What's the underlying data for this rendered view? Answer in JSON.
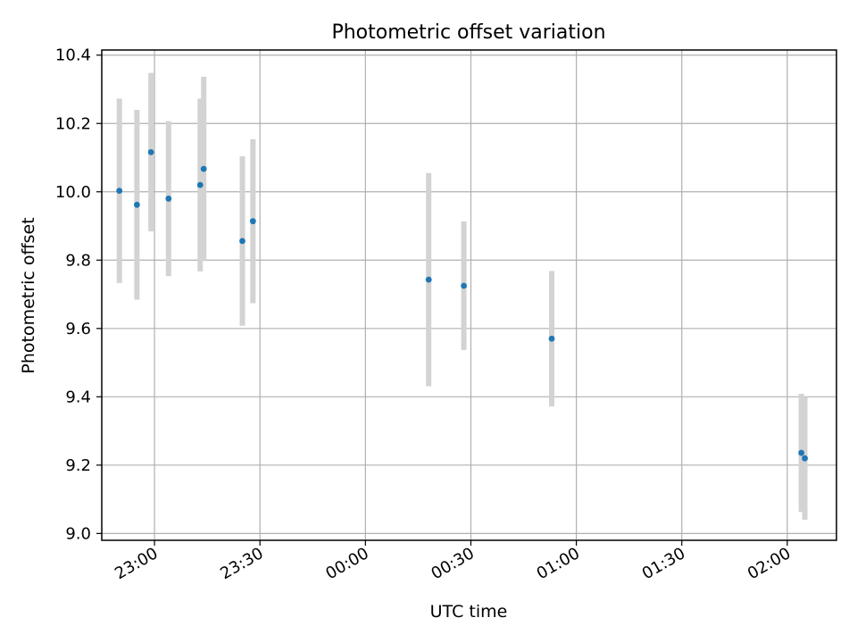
{
  "chart_data": {
    "type": "scatter",
    "title": "Photometric offset variation",
    "xlabel": "UTC time",
    "ylabel": "Photometric offset",
    "x_axis_type": "time",
    "xlim": [
      "22:45",
      "02:14"
    ],
    "ylim": [
      8.98,
      10.415
    ],
    "grid": true,
    "x_ticks": [
      {
        "t": "23:00",
        "label": "23:00"
      },
      {
        "t": "23:30",
        "label": "23:30"
      },
      {
        "t": "00:00",
        "label": "00:00"
      },
      {
        "t": "00:30",
        "label": "00:30"
      },
      {
        "t": "01:00",
        "label": "01:00"
      },
      {
        "t": "01:30",
        "label": "01:30"
      },
      {
        "t": "02:00",
        "label": "02:00"
      }
    ],
    "y_ticks": [
      {
        "v": 9.0,
        "label": "9.0"
      },
      {
        "v": 9.2,
        "label": "9.2"
      },
      {
        "v": 9.4,
        "label": "9.4"
      },
      {
        "v": 9.6,
        "label": "9.6"
      },
      {
        "v": 9.8,
        "label": "9.8"
      },
      {
        "v": 10.0,
        "label": "10.0"
      },
      {
        "v": 10.2,
        "label": "10.2"
      },
      {
        "v": 10.4,
        "label": "10.4"
      }
    ],
    "marker_color": "#1f77b4",
    "errorbar_color": "#d3d3d3",
    "points": [
      {
        "t": "22:50",
        "y": 10.003,
        "err": 0.27
      },
      {
        "t": "22:55",
        "y": 9.962,
        "err": 0.278
      },
      {
        "t": "22:59",
        "y": 10.116,
        "err": 0.232
      },
      {
        "t": "23:04",
        "y": 9.98,
        "err": 0.227
      },
      {
        "t": "23:13",
        "y": 10.02,
        "err": 0.253
      },
      {
        "t": "23:14",
        "y": 10.067,
        "err": 0.27
      },
      {
        "t": "23:25",
        "y": 9.856,
        "err": 0.248
      },
      {
        "t": "23:28",
        "y": 9.914,
        "err": 0.24
      },
      {
        "t": "00:18",
        "y": 9.743,
        "err": 0.312
      },
      {
        "t": "00:28",
        "y": 9.725,
        "err": 0.188
      },
      {
        "t": "00:53",
        "y": 9.57,
        "err": 0.198
      },
      {
        "t": "02:04",
        "y": 9.236,
        "err": 0.173
      },
      {
        "t": "02:05",
        "y": 9.22,
        "err": 0.18
      }
    ]
  }
}
